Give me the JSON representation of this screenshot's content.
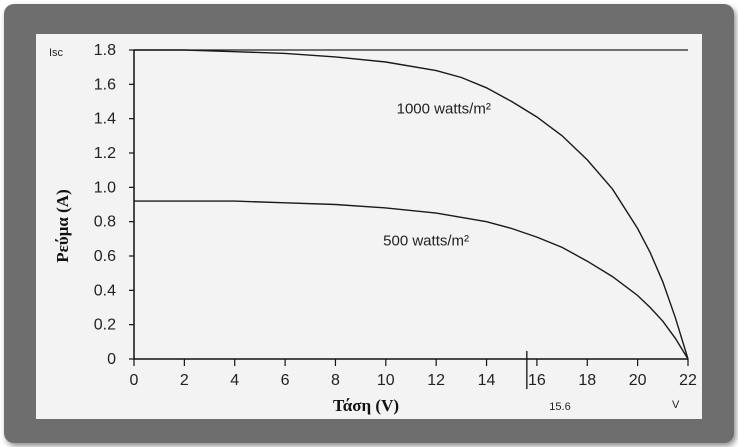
{
  "chart_data": {
    "type": "line",
    "xlabel": "Τάση (V)",
    "ylabel": "Ρεύμα (A)",
    "xlim": [
      0,
      22
    ],
    "ylim": [
      0,
      1.8
    ],
    "xticks": [
      "0",
      "2",
      "4",
      "6",
      "8",
      "10",
      "12",
      "14",
      "16",
      "18",
      "20",
      "22"
    ],
    "yticks": [
      "0",
      "0.2",
      "0.4",
      "0.6",
      "0.8",
      "1.0",
      "1.2",
      "1.4",
      "1.6",
      "1.8"
    ],
    "isc_label": "Isc",
    "voc_label": "V",
    "extra_xtick": {
      "value": 15.6,
      "label": "15.6"
    },
    "grid": false,
    "series": [
      {
        "name": "1000 watts/m²",
        "x": [
          0,
          2,
          4,
          6,
          8,
          10,
          12,
          13,
          14,
          15,
          16,
          17,
          18,
          19,
          20,
          20.5,
          21,
          21.5,
          22
        ],
        "y": [
          1.8,
          1.8,
          1.79,
          1.78,
          1.76,
          1.73,
          1.68,
          1.64,
          1.58,
          1.5,
          1.41,
          1.3,
          1.16,
          0.99,
          0.76,
          0.62,
          0.45,
          0.24,
          0.0
        ]
      },
      {
        "name": "500 watts/m²",
        "x": [
          0,
          2,
          4,
          6,
          8,
          10,
          12,
          14,
          15,
          16,
          17,
          18,
          19,
          20,
          20.5,
          21,
          21.5,
          22
        ],
        "y": [
          0.92,
          0.92,
          0.92,
          0.91,
          0.9,
          0.88,
          0.85,
          0.8,
          0.76,
          0.71,
          0.65,
          0.57,
          0.48,
          0.37,
          0.3,
          0.22,
          0.12,
          0.0
        ]
      }
    ],
    "annotations": [
      {
        "text": "1000 watts/m²",
        "x": 12.3,
        "y": 1.43
      },
      {
        "text": "500 watts/m²",
        "x": 11.6,
        "y": 0.66
      }
    ]
  }
}
